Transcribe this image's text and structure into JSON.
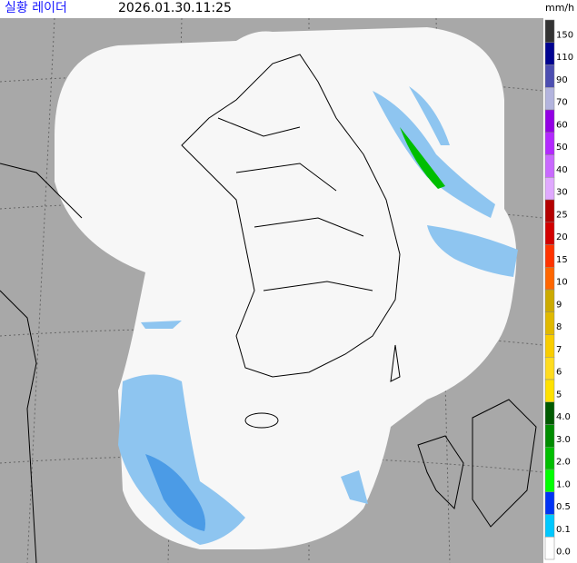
{
  "header": {
    "title": "실황 레이더",
    "timestamp": "2026.01.30.11:25",
    "unit": "mm/h"
  },
  "legend": {
    "labels": [
      "150",
      "110",
      "90",
      "70",
      "60",
      "50",
      "40",
      "30",
      "25",
      "20",
      "15",
      "10",
      "9",
      "8",
      "7",
      "6",
      "5",
      "4.0",
      "3.0",
      "2.0",
      "1.0",
      "0.5",
      "0.1",
      "0.0"
    ],
    "colors": [
      "#333333",
      "#000390",
      "#4c4eb1",
      "#b3b4de",
      "#9300e4",
      "#b329ff",
      "#c969ff",
      "#e0a9ff",
      "#b40000",
      "#d20000",
      "#ff3300",
      "#ff6600",
      "#ccaa00",
      "#e0b900",
      "#f9cd00",
      "#ffdc1f",
      "#ffe100",
      "#005a00",
      "#008c00",
      "#00be00",
      "#00ff00",
      "#0033f5",
      "#00c8ff",
      "#ffffff"
    ]
  }
}
